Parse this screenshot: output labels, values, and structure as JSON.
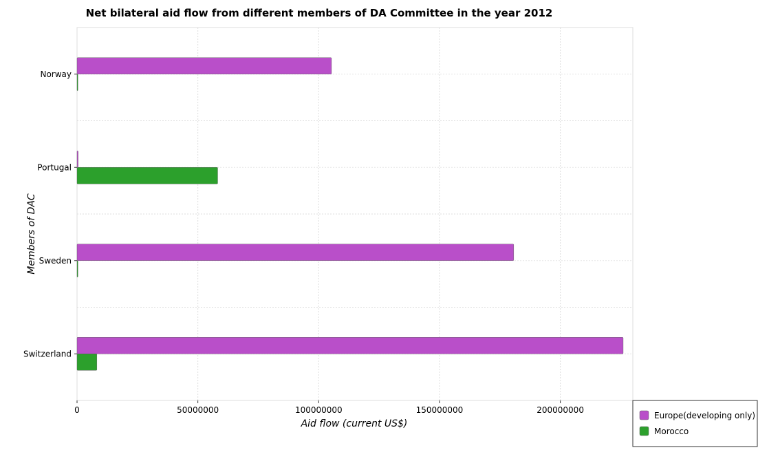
{
  "chart_data": {
    "type": "bar",
    "orientation": "horizontal",
    "title": "Net bilateral aid flow from different members of DA Committee in the year 2012",
    "xlabel": "Aid flow (current US$)",
    "ylabel": "Members of DAC",
    "categories": [
      "Norway",
      "Portugal",
      "Sweden",
      "Switzerland"
    ],
    "series": [
      {
        "name": "Europe(developing only)",
        "color": "#b94fc9",
        "values": [
          105300000,
          450000,
          180700000,
          226000000
        ]
      },
      {
        "name": "Morocco",
        "color": "#2ca02c",
        "values": [
          200000,
          58200000,
          100000,
          8200000
        ]
      }
    ],
    "xlim": [
      0,
      230000000
    ],
    "xticks": [
      0,
      50000000,
      100000000,
      150000000,
      200000000
    ],
    "xtick_labels": [
      "0",
      "50000000",
      "100000000",
      "150000000",
      "200000000"
    ],
    "grid": true,
    "legend_position": "bottom-right"
  }
}
